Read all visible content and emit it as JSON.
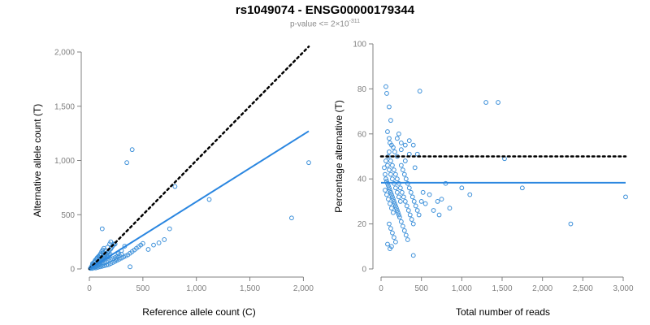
{
  "header": {
    "title": "rs1049074 - ENSG00000179344",
    "subtitle_prefix": "p-value <= 2×10",
    "subtitle_exp": "-311"
  },
  "colors": {
    "points": "#3b8fd9",
    "fit": "#2a86e0",
    "reference": "#000000",
    "axis": "#808080"
  },
  "chart_data": [
    {
      "type": "scatter",
      "xlabel": "Reference allele count (C)",
      "ylabel": "Alternative allele count (T)",
      "xlim": [
        0,
        2050
      ],
      "ylim": [
        0,
        2000
      ],
      "xticks": [
        0,
        500,
        1000,
        1500,
        2000
      ],
      "xtick_labels": [
        "0",
        "500",
        "1,000",
        "1,500",
        "2,000"
      ],
      "yticks": [
        0,
        500,
        1000,
        1500,
        2000
      ],
      "ytick_labels": [
        "0",
        "500",
        "1,000",
        "1,500",
        "2,000"
      ],
      "grid": false,
      "reference_line": {
        "style": "dotted",
        "from": [
          0,
          0
        ],
        "to": [
          2050,
          2050
        ]
      },
      "fit_line": {
        "style": "solid",
        "from": [
          0,
          0
        ],
        "to": [
          2050,
          1270
        ]
      },
      "points": [
        [
          20,
          15
        ],
        [
          30,
          25
        ],
        [
          40,
          30
        ],
        [
          50,
          40
        ],
        [
          60,
          45
        ],
        [
          70,
          55
        ],
        [
          80,
          60
        ],
        [
          90,
          70
        ],
        [
          100,
          80
        ],
        [
          110,
          90
        ],
        [
          120,
          100
        ],
        [
          130,
          110
        ],
        [
          140,
          120
        ],
        [
          150,
          130
        ],
        [
          160,
          140
        ],
        [
          170,
          150
        ],
        [
          180,
          160
        ],
        [
          190,
          175
        ],
        [
          200,
          185
        ],
        [
          210,
          200
        ],
        [
          220,
          215
        ],
        [
          230,
          230
        ],
        [
          40,
          10
        ],
        [
          60,
          20
        ],
        [
          80,
          30
        ],
        [
          100,
          35
        ],
        [
          120,
          45
        ],
        [
          140,
          55
        ],
        [
          160,
          65
        ],
        [
          180,
          75
        ],
        [
          200,
          85
        ],
        [
          220,
          95
        ],
        [
          240,
          105
        ],
        [
          260,
          115
        ],
        [
          280,
          125
        ],
        [
          300,
          135
        ],
        [
          50,
          70
        ],
        [
          70,
          95
        ],
        [
          90,
          110
        ],
        [
          110,
          130
        ],
        [
          130,
          150
        ],
        [
          150,
          170
        ],
        [
          170,
          200
        ],
        [
          190,
          230
        ],
        [
          30,
          50
        ],
        [
          45,
          60
        ],
        [
          55,
          80
        ],
        [
          65,
          90
        ],
        [
          75,
          105
        ],
        [
          85,
          115
        ],
        [
          95,
          125
        ],
        [
          105,
          140
        ],
        [
          115,
          160
        ],
        [
          125,
          175
        ],
        [
          135,
          190
        ],
        [
          60,
          10
        ],
        [
          80,
          15
        ],
        [
          100,
          20
        ],
        [
          120,
          25
        ],
        [
          140,
          30
        ],
        [
          160,
          35
        ],
        [
          180,
          40
        ],
        [
          200,
          50
        ],
        [
          220,
          60
        ],
        [
          240,
          70
        ],
        [
          260,
          80
        ],
        [
          280,
          90
        ],
        [
          300,
          100
        ],
        [
          320,
          110
        ],
        [
          340,
          120
        ],
        [
          360,
          130
        ],
        [
          380,
          145
        ],
        [
          400,
          160
        ],
        [
          420,
          175
        ],
        [
          440,
          190
        ],
        [
          460,
          205
        ],
        [
          480,
          220
        ],
        [
          500,
          235
        ],
        [
          550,
          180
        ],
        [
          600,
          220
        ],
        [
          650,
          240
        ],
        [
          700,
          270
        ],
        [
          120,
          370
        ],
        [
          200,
          250
        ],
        [
          240,
          230
        ],
        [
          250,
          90
        ],
        [
          270,
          140
        ],
        [
          300,
          170
        ],
        [
          330,
          210
        ],
        [
          380,
          20
        ],
        [
          350,
          980
        ],
        [
          400,
          1100
        ],
        [
          800,
          760
        ],
        [
          750,
          370
        ],
        [
          1120,
          640
        ],
        [
          1890,
          470
        ],
        [
          2050,
          980
        ],
        [
          25,
          5
        ],
        [
          35,
          10
        ],
        [
          45,
          20
        ],
        [
          55,
          25
        ],
        [
          65,
          35
        ],
        [
          75,
          40
        ],
        [
          85,
          50
        ],
        [
          95,
          55
        ],
        [
          105,
          65
        ],
        [
          115,
          75
        ],
        [
          125,
          80
        ],
        [
          135,
          85
        ],
        [
          145,
          95
        ],
        [
          155,
          100
        ],
        [
          165,
          110
        ],
        [
          175,
          115
        ],
        [
          185,
          125
        ],
        [
          195,
          135
        ],
        [
          10,
          5
        ],
        [
          15,
          10
        ],
        [
          20,
          20
        ],
        [
          25,
          30
        ],
        [
          30,
          40
        ]
      ]
    },
    {
      "type": "scatter",
      "xlabel": "Total number of reads",
      "ylabel": "Percentage alternative (T)",
      "xlim": [
        0,
        3030
      ],
      "ylim": [
        0,
        100
      ],
      "xticks": [
        0,
        500,
        1000,
        1500,
        2000,
        2500,
        3000
      ],
      "xtick_labels": [
        "0",
        "500",
        "1,000",
        "1,500",
        "2,000",
        "2,500",
        "3,000"
      ],
      "yticks": [
        0,
        20,
        40,
        60,
        80,
        100
      ],
      "ytick_labels": [
        "0",
        "20",
        "40",
        "60",
        "80",
        "100"
      ],
      "grid": false,
      "reference_line": {
        "style": "dotted",
        "y": 50
      },
      "fit_line": {
        "style": "solid",
        "y": 38.3
      },
      "points": [
        [
          60,
          81
        ],
        [
          70,
          78
        ],
        [
          100,
          72
        ],
        [
          120,
          66
        ],
        [
          80,
          61
        ],
        [
          100,
          58
        ],
        [
          110,
          56
        ],
        [
          130,
          55
        ],
        [
          150,
          54
        ],
        [
          170,
          52
        ],
        [
          200,
          58
        ],
        [
          220,
          60
        ],
        [
          250,
          56
        ],
        [
          300,
          55
        ],
        [
          350,
          57
        ],
        [
          400,
          55
        ],
        [
          450,
          51
        ],
        [
          480,
          79
        ],
        [
          90,
          50
        ],
        [
          120,
          48
        ],
        [
          140,
          46
        ],
        [
          160,
          44
        ],
        [
          180,
          42
        ],
        [
          200,
          40
        ],
        [
          220,
          38
        ],
        [
          240,
          36
        ],
        [
          260,
          34
        ],
        [
          280,
          32
        ],
        [
          300,
          30
        ],
        [
          320,
          28
        ],
        [
          340,
          26
        ],
        [
          360,
          24
        ],
        [
          380,
          22
        ],
        [
          400,
          20
        ],
        [
          50,
          35
        ],
        [
          70,
          33
        ],
        [
          90,
          31
        ],
        [
          110,
          29
        ],
        [
          130,
          27
        ],
        [
          150,
          25
        ],
        [
          60,
          40
        ],
        [
          80,
          38
        ],
        [
          100,
          36
        ],
        [
          120,
          34
        ],
        [
          140,
          32
        ],
        [
          160,
          30
        ],
        [
          180,
          28
        ],
        [
          200,
          26
        ],
        [
          220,
          24
        ],
        [
          100,
          20
        ],
        [
          120,
          18
        ],
        [
          140,
          16
        ],
        [
          160,
          14
        ],
        [
          180,
          12
        ],
        [
          80,
          11
        ],
        [
          110,
          9
        ],
        [
          130,
          10
        ],
        [
          400,
          6
        ],
        [
          500,
          30
        ],
        [
          520,
          34
        ],
        [
          550,
          29
        ],
        [
          600,
          33
        ],
        [
          650,
          26
        ],
        [
          700,
          30
        ],
        [
          720,
          24
        ],
        [
          750,
          31
        ],
        [
          800,
          38
        ],
        [
          850,
          27
        ],
        [
          1000,
          36
        ],
        [
          1100,
          33
        ],
        [
          1300,
          74
        ],
        [
          1450,
          74
        ],
        [
          1530,
          49
        ],
        [
          1750,
          36
        ],
        [
          2350,
          20
        ],
        [
          3030,
          32
        ],
        [
          250,
          46
        ],
        [
          270,
          44
        ],
        [
          290,
          42
        ],
        [
          310,
          40
        ],
        [
          330,
          38
        ],
        [
          350,
          36
        ],
        [
          370,
          34
        ],
        [
          390,
          32
        ],
        [
          410,
          30
        ],
        [
          430,
          28
        ],
        [
          450,
          26
        ],
        [
          470,
          24
        ],
        [
          60,
          48
        ],
        [
          80,
          46
        ],
        [
          100,
          44
        ],
        [
          120,
          42
        ],
        [
          140,
          40
        ],
        [
          160,
          38
        ],
        [
          180,
          36
        ],
        [
          200,
          34
        ],
        [
          220,
          32
        ],
        [
          240,
          30
        ],
        [
          40,
          45
        ],
        [
          50,
          42
        ],
        [
          70,
          39
        ],
        [
          90,
          37
        ],
        [
          110,
          35
        ],
        [
          130,
          33
        ],
        [
          150,
          31
        ],
        [
          170,
          29
        ],
        [
          190,
          27
        ],
        [
          210,
          25
        ],
        [
          230,
          23
        ],
        [
          250,
          21
        ],
        [
          270,
          19
        ],
        [
          290,
          17
        ],
        [
          310,
          15
        ],
        [
          330,
          13
        ],
        [
          100,
          52
        ],
        [
          200,
          50
        ],
        [
          300,
          48
        ],
        [
          250,
          53
        ],
        [
          350,
          51
        ],
        [
          420,
          45
        ]
      ]
    }
  ]
}
